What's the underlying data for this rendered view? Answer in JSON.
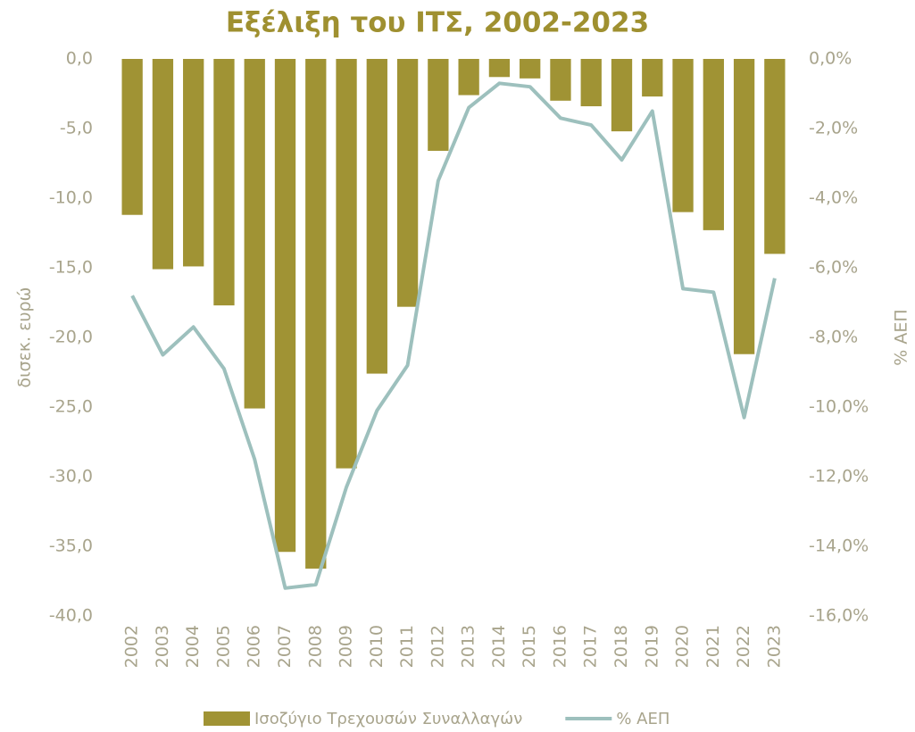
{
  "chart_data": {
    "type": "bar_line",
    "title": "Εξέλιξη του ΙΤΣ, 2002-2023",
    "y_label": "δισεκ. ευρώ",
    "y2_label": "% ΑΕΠ",
    "categories": [
      "2002",
      "2003",
      "2004",
      "2005",
      "2006",
      "2007",
      "2008",
      "2009",
      "2010",
      "2011",
      "2012",
      "2013",
      "2014",
      "2015",
      "2016",
      "2017",
      "2018",
      "2019",
      "2020",
      "2021",
      "2022",
      "2023"
    ],
    "series": [
      {
        "name": "Ισοζύγιο Τρεχουσών Συναλλαγών",
        "type": "bar",
        "color": "#a09334",
        "values": [
          -11.2,
          -15.1,
          -14.9,
          -17.7,
          -25.1,
          -35.4,
          -36.6,
          -29.4,
          -22.6,
          -17.8,
          -6.6,
          -2.6,
          -1.3,
          -1.4,
          -3.0,
          -3.4,
          -5.2,
          -2.7,
          -11.0,
          -12.3,
          -21.2,
          -14.0
        ]
      },
      {
        "name": "% ΑΕΠ",
        "type": "line",
        "axis": "y2",
        "color": "#9dc0bd",
        "values": [
          -6.8,
          -8.5,
          -7.7,
          -8.9,
          -11.5,
          -15.2,
          -15.1,
          -12.3,
          -10.1,
          -8.8,
          -3.5,
          -1.4,
          -0.7,
          -0.8,
          -1.7,
          -1.9,
          -2.9,
          -1.5,
          -6.6,
          -6.7,
          -10.3,
          -6.3
        ]
      }
    ],
    "ylim": [
      -40,
      0
    ],
    "yticks": [
      {
        "value": 0,
        "label": "0,0"
      },
      {
        "value": -5,
        "label": "-5,0"
      },
      {
        "value": -10,
        "label": "-10,0"
      },
      {
        "value": -15,
        "label": "-15,0"
      },
      {
        "value": -20,
        "label": "-20,0"
      },
      {
        "value": -25,
        "label": "-25,0"
      },
      {
        "value": -30,
        "label": "-30,0"
      },
      {
        "value": -35,
        "label": "-35,0"
      },
      {
        "value": -40,
        "label": "-40,0"
      }
    ],
    "y2lim": [
      -16,
      0
    ],
    "y2ticks": [
      {
        "value": 0,
        "label": "0,0%"
      },
      {
        "value": -2,
        "label": "-2,0%"
      },
      {
        "value": -4,
        "label": "-4,0%"
      },
      {
        "value": -6,
        "label": "-6,0%"
      },
      {
        "value": -8,
        "label": "-8,0%"
      },
      {
        "value": -10,
        "label": "-10,0%"
      },
      {
        "value": -12,
        "label": "-12,0%"
      },
      {
        "value": -14,
        "label": "-14,0%"
      },
      {
        "value": -16,
        "label": "-16,0%"
      }
    ],
    "grid": false,
    "legend": "bottom"
  }
}
